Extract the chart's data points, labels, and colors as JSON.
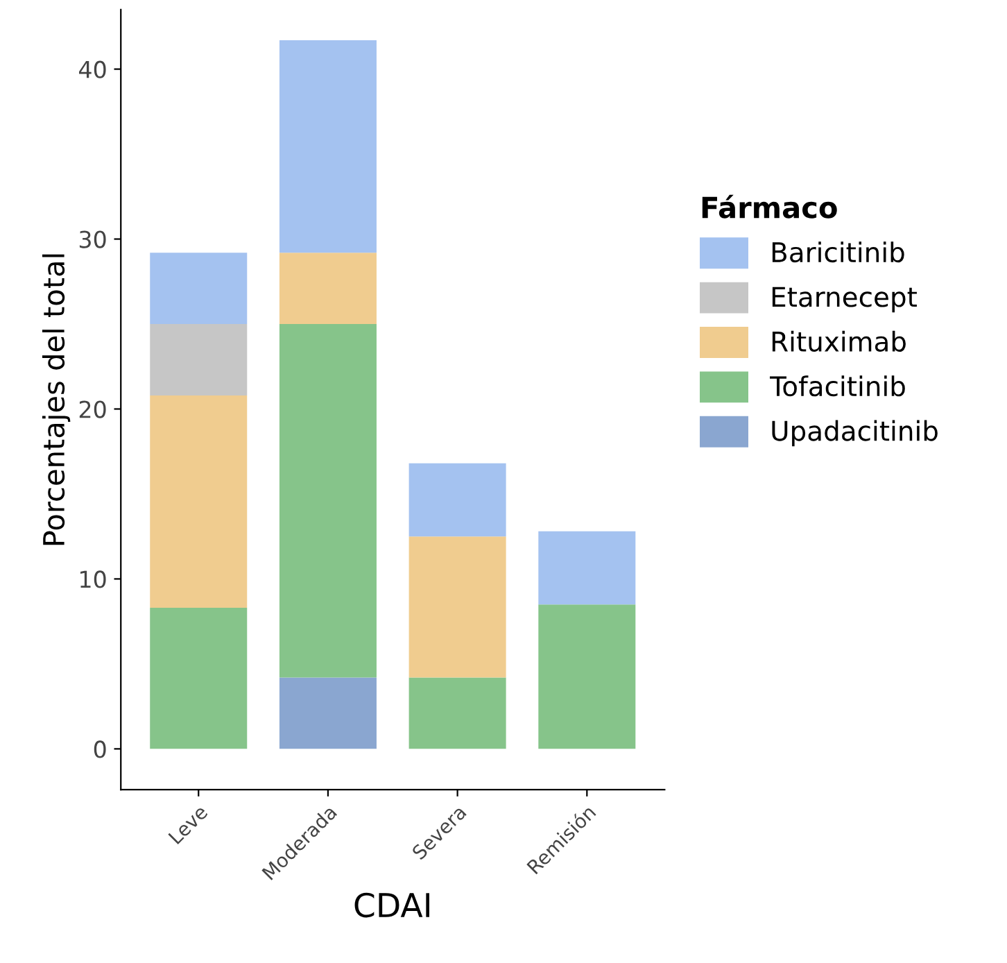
{
  "chart_data": {
    "type": "bar",
    "stacked": true,
    "xlabel": "CDAI",
    "ylabel": "Porcentajes del total",
    "legend_title": "Fármaco",
    "legend": "right",
    "grid": false,
    "categories": [
      "Leve",
      "Moderada",
      "Severa",
      "Remisión"
    ],
    "ylim": [
      -2.4,
      43.5
    ],
    "yticks": [
      0,
      10,
      20,
      30,
      40
    ],
    "series": [
      {
        "name": "Upadacitinib",
        "color": "#8aa6d0",
        "values": [
          null,
          4.2,
          null,
          null
        ]
      },
      {
        "name": "Tofacitinib",
        "color": "#86c48a",
        "values": [
          8.3,
          20.8,
          4.2,
          8.5
        ]
      },
      {
        "name": "Rituximab",
        "color": "#f0cc8f",
        "values": [
          12.5,
          4.2,
          8.3,
          null
        ]
      },
      {
        "name": "Etarnecept",
        "color": "#c6c6c6",
        "values": [
          4.2,
          null,
          null,
          null
        ]
      },
      {
        "name": "Baricitinib",
        "color": "#a4c2f0",
        "values": [
          4.2,
          12.5,
          4.3,
          4.3
        ]
      }
    ]
  }
}
